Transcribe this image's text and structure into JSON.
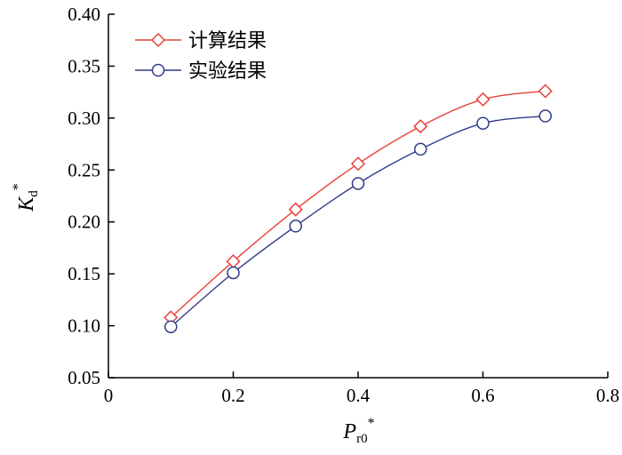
{
  "chart_data": {
    "type": "line",
    "x": [
      0.1,
      0.2,
      0.3,
      0.4,
      0.5,
      0.6,
      0.7
    ],
    "series": [
      {
        "name": "计算结果",
        "values": [
          0.108,
          0.162,
          0.212,
          0.256,
          0.292,
          0.318,
          0.326
        ],
        "color": "#e8403a",
        "marker": "diamond"
      },
      {
        "name": "实验结果",
        "values": [
          0.099,
          0.151,
          0.196,
          0.237,
          0.27,
          0.295,
          0.302
        ],
        "color": "#2e3c8c",
        "marker": "circle"
      }
    ],
    "xlim": [
      0,
      0.8
    ],
    "ylim": [
      0.05,
      0.4
    ],
    "xticks": [
      "0",
      "0.2",
      "0.4",
      "0.6",
      "0.8"
    ],
    "yticks": [
      "0.05",
      "0.10",
      "0.15",
      "0.20",
      "0.25",
      "0.30",
      "0.35",
      "0.40"
    ],
    "xlabel": {
      "main": "P",
      "sub": "r0",
      "sup": "*"
    },
    "ylabel": {
      "main": "K",
      "sub": "d",
      "sup": "*"
    },
    "legend_position": "top-left",
    "grid": false
  }
}
